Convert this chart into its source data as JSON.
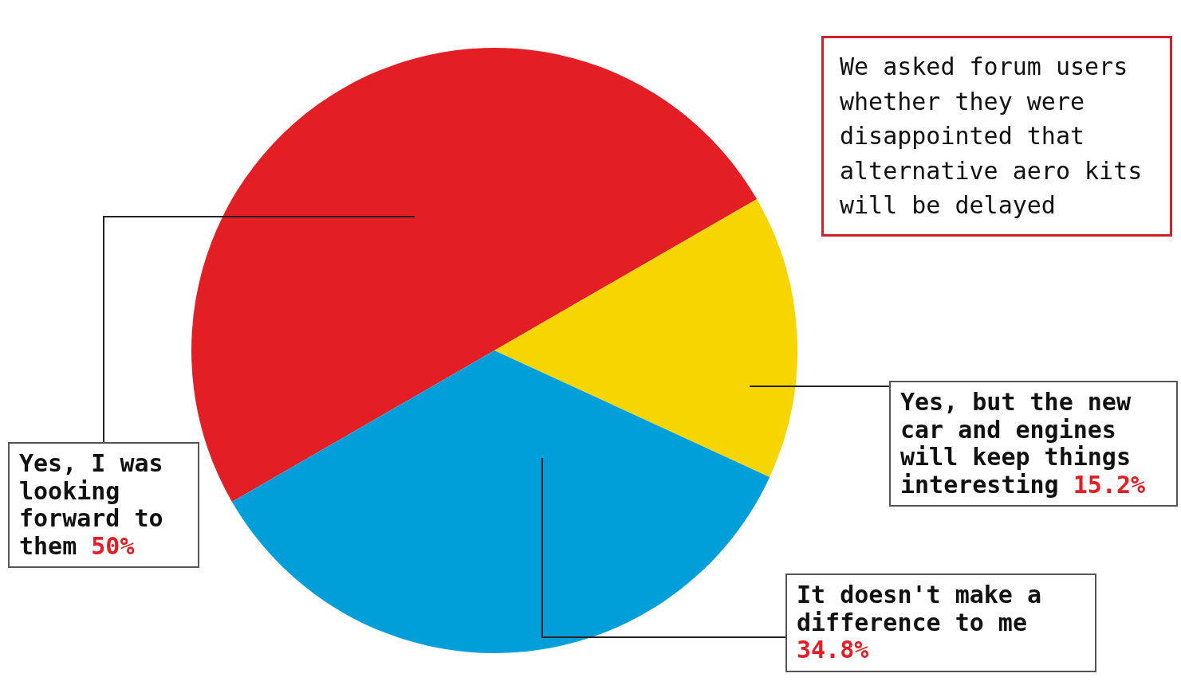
{
  "chart_data": {
    "type": "pie",
    "categories": [
      "Yes, I was looking forward to them",
      "Yes, but the new car and engines will keep things interesting",
      "It doesn't make a difference to me"
    ],
    "values": [
      50,
      15.2,
      34.8
    ],
    "colors": [
      "#e31e24",
      "#f7d500",
      "#009fd9"
    ],
    "value_labels": [
      "50%",
      "15.2%",
      "34.8%"
    ],
    "legend": false,
    "annotations": [
      "We asked forum users whether they were disappointed that alternative aero kits will be delayed"
    ]
  }
}
